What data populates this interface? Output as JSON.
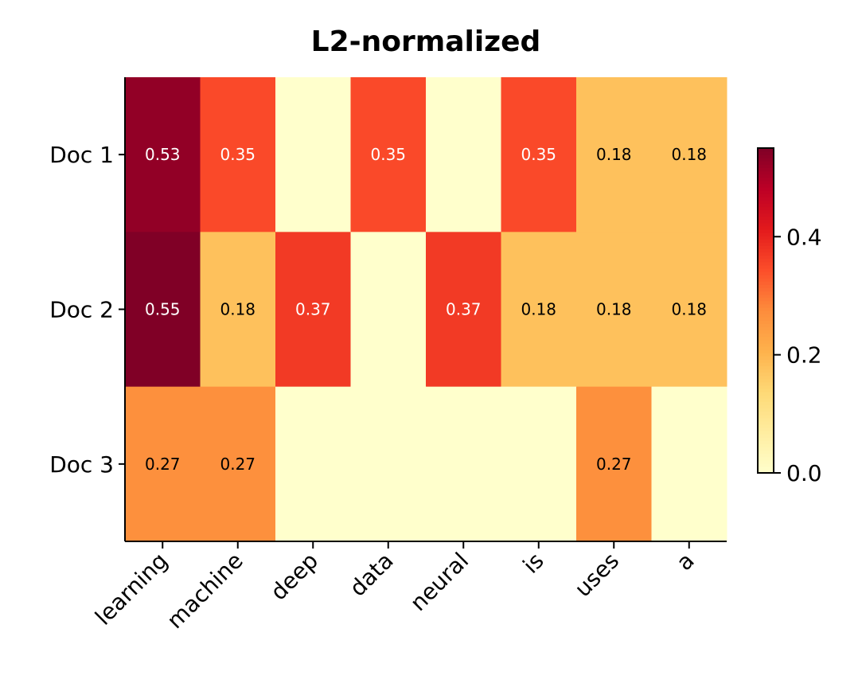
{
  "chart_data": {
    "type": "heatmap",
    "title": "L2-normalized",
    "columns": [
      "learning",
      "machine",
      "deep",
      "data",
      "neural",
      "is",
      "uses",
      "a"
    ],
    "rows": [
      "Doc 1",
      "Doc 2",
      "Doc 3"
    ],
    "values": [
      [
        0.53,
        0.35,
        0,
        0.35,
        0,
        0.35,
        0.18,
        0.18
      ],
      [
        0.55,
        0.18,
        0.37,
        0,
        0.37,
        0.18,
        0.18,
        0.18
      ],
      [
        0.27,
        0.27,
        0,
        0,
        0,
        0,
        0.27,
        0
      ]
    ],
    "colormap": "YlOrRd",
    "colorbar": {
      "range": [
        0,
        0.55
      ],
      "ticks": [
        0.0,
        0.2,
        0.4
      ],
      "tick_labels": [
        "0.0",
        "0.2",
        "0.4"
      ]
    },
    "annotation_format": "2 decimals, zeros hidden"
  }
}
